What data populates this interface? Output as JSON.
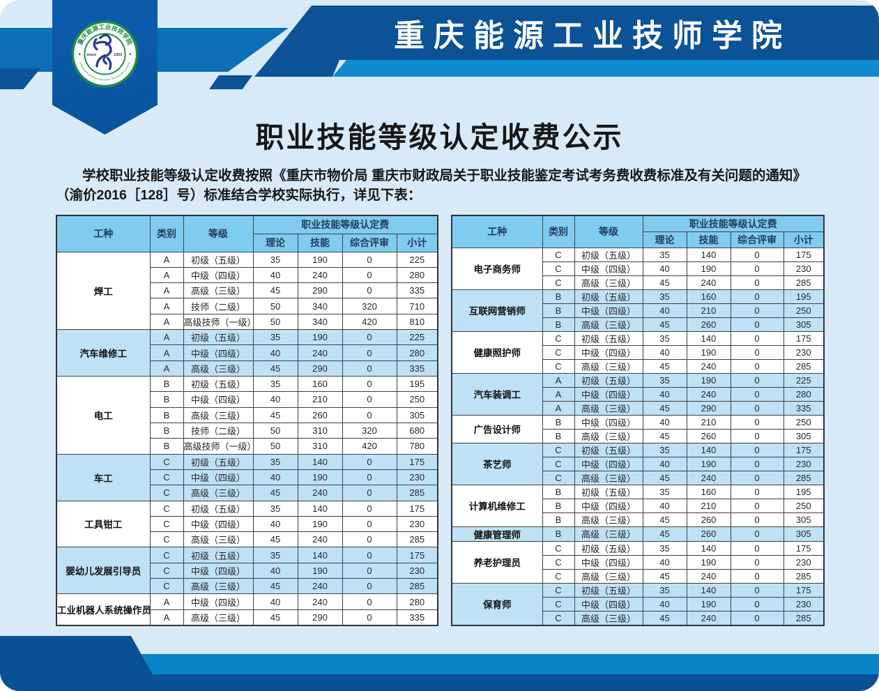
{
  "header": {
    "college_name": "重庆能源工业技师学院",
    "logo": {
      "ring_text_top": "重庆能源工业技师学院",
      "ring_text_bottom": "CHONGQING ENERGY INDUSTRY TECHNICIAN COLLEGE",
      "since_label": "since",
      "year_label": "1953"
    }
  },
  "title": "职业技能等级认定收费公示",
  "intro": {
    "line1": "学校职业技能等级认定收费按照《重庆市物价局 重庆市财政局关于职业技能鉴定考试考务费收费标准及有关问题的通知》",
    "line2": "（渝价2016［128］号）标准结合学校实际执行，详见下表："
  },
  "table_headers": {
    "job": "工种",
    "category": "类别",
    "level": "等级",
    "fee_group": "职业技能等级认定费",
    "theory": "理论",
    "skill": "技能",
    "review": "综合评审",
    "subtotal": "小计"
  },
  "tables": {
    "left": {
      "groups": [
        {
          "job": "焊工",
          "shade": false,
          "rows": [
            [
              "A",
              "初级（五级）",
              "35",
              "190",
              "0",
              "225"
            ],
            [
              "A",
              "中级（四级）",
              "40",
              "240",
              "0",
              "280"
            ],
            [
              "A",
              "高级（三级）",
              "45",
              "290",
              "0",
              "335"
            ],
            [
              "A",
              "技师（二级）",
              "50",
              "340",
              "320",
              "710"
            ],
            [
              "A",
              "高级技师（一级）",
              "50",
              "340",
              "420",
              "810"
            ]
          ]
        },
        {
          "job": "汽车维修工",
          "shade": true,
          "rows": [
            [
              "A",
              "初级（五级）",
              "35",
              "190",
              "0",
              "225"
            ],
            [
              "A",
              "中级（四级）",
              "40",
              "240",
              "0",
              "280"
            ],
            [
              "A",
              "高级（三级）",
              "45",
              "290",
              "0",
              "335"
            ]
          ]
        },
        {
          "job": "电工",
          "shade": false,
          "rows": [
            [
              "B",
              "初级（五级）",
              "35",
              "160",
              "0",
              "195"
            ],
            [
              "B",
              "中级（四级）",
              "40",
              "210",
              "0",
              "250"
            ],
            [
              "B",
              "高级（三级）",
              "45",
              "260",
              "0",
              "305"
            ],
            [
              "B",
              "技师（二级）",
              "50",
              "310",
              "320",
              "680"
            ],
            [
              "B",
              "高级技师（一级）",
              "50",
              "310",
              "420",
              "780"
            ]
          ]
        },
        {
          "job": "车工",
          "shade": true,
          "rows": [
            [
              "C",
              "初级（五级）",
              "35",
              "140",
              "0",
              "175"
            ],
            [
              "C",
              "中级（四级）",
              "40",
              "190",
              "0",
              "230"
            ],
            [
              "C",
              "高级（三级）",
              "45",
              "240",
              "0",
              "285"
            ]
          ]
        },
        {
          "job": "工具钳工",
          "shade": false,
          "rows": [
            [
              "C",
              "初级（五级）",
              "35",
              "140",
              "0",
              "175"
            ],
            [
              "C",
              "中级（四级）",
              "40",
              "190",
              "0",
              "230"
            ],
            [
              "C",
              "高级（三级）",
              "45",
              "240",
              "0",
              "285"
            ]
          ]
        },
        {
          "job": "婴幼儿发展引导员",
          "shade": true,
          "rows": [
            [
              "C",
              "初级（五级）",
              "35",
              "140",
              "0",
              "175"
            ],
            [
              "C",
              "中级（四级）",
              "40",
              "190",
              "0",
              "230"
            ],
            [
              "C",
              "高级（三级）",
              "45",
              "240",
              "0",
              "285"
            ]
          ]
        },
        {
          "job": "工业机器人系统操作员",
          "shade": false,
          "rows": [
            [
              "A",
              "中级（四级）",
              "40",
              "240",
              "0",
              "280"
            ],
            [
              "A",
              "高级（三级）",
              "45",
              "290",
              "0",
              "335"
            ]
          ]
        }
      ]
    },
    "right": {
      "groups": [
        {
          "job": "电子商务师",
          "shade": false,
          "rows": [
            [
              "C",
              "初级（五级）",
              "35",
              "140",
              "0",
              "175"
            ],
            [
              "C",
              "中级（四级）",
              "40",
              "190",
              "0",
              "230"
            ],
            [
              "C",
              "高级（三级）",
              "45",
              "240",
              "0",
              "285"
            ]
          ]
        },
        {
          "job": "互联网营销师",
          "shade": true,
          "rows": [
            [
              "B",
              "初级（五级）",
              "35",
              "160",
              "0",
              "195"
            ],
            [
              "B",
              "中级（四级）",
              "40",
              "210",
              "0",
              "250"
            ],
            [
              "B",
              "高级（三级）",
              "45",
              "260",
              "0",
              "305"
            ]
          ]
        },
        {
          "job": "健康照护师",
          "shade": false,
          "rows": [
            [
              "C",
              "初级（五级）",
              "35",
              "140",
              "0",
              "175"
            ],
            [
              "C",
              "中级（四级）",
              "40",
              "190",
              "0",
              "230"
            ],
            [
              "C",
              "高级（三级）",
              "45",
              "240",
              "0",
              "285"
            ]
          ]
        },
        {
          "job": "汽车装调工",
          "shade": true,
          "rows": [
            [
              "A",
              "初级（五级）",
              "35",
              "190",
              "0",
              "225"
            ],
            [
              "A",
              "中级（四级）",
              "40",
              "240",
              "0",
              "280"
            ],
            [
              "A",
              "高级（三级）",
              "45",
              "290",
              "0",
              "335"
            ]
          ]
        },
        {
          "job": "广告设计师",
          "shade": false,
          "rows": [
            [
              "B",
              "中级（四级）",
              "40",
              "210",
              "0",
              "250"
            ],
            [
              "B",
              "高级（三级）",
              "45",
              "260",
              "0",
              "305"
            ]
          ]
        },
        {
          "job": "茶艺师",
          "shade": true,
          "rows": [
            [
              "C",
              "初级（五级）",
              "35",
              "140",
              "0",
              "175"
            ],
            [
              "C",
              "中级（四级）",
              "40",
              "190",
              "0",
              "230"
            ],
            [
              "C",
              "高级（三级）",
              "45",
              "240",
              "0",
              "285"
            ]
          ]
        },
        {
          "job": "计算机维修工",
          "shade": false,
          "rows": [
            [
              "B",
              "初级（五级）",
              "35",
              "160",
              "0",
              "195"
            ],
            [
              "B",
              "中级（四级）",
              "40",
              "210",
              "0",
              "250"
            ],
            [
              "B",
              "高级（三级）",
              "45",
              "260",
              "0",
              "305"
            ]
          ]
        },
        {
          "job": "健康管理师",
          "shade": true,
          "rows": [
            [
              "B",
              "高级（三级）",
              "45",
              "260",
              "0",
              "305"
            ]
          ]
        },
        {
          "job": "养老护理员",
          "shade": false,
          "rows": [
            [
              "C",
              "初级（五级）",
              "35",
              "140",
              "0",
              "175"
            ],
            [
              "C",
              "中级（四级）",
              "40",
              "190",
              "0",
              "230"
            ],
            [
              "C",
              "高级（三级）",
              "45",
              "240",
              "0",
              "285"
            ]
          ]
        },
        {
          "job": "保育师",
          "shade": true,
          "rows": [
            [
              "C",
              "初级（五级）",
              "35",
              "140",
              "0",
              "175"
            ],
            [
              "C",
              "中级（四级）",
              "40",
              "190",
              "0",
              "230"
            ],
            [
              "C",
              "高级（三级）",
              "45",
              "240",
              "0",
              "285"
            ]
          ]
        }
      ]
    }
  },
  "colors": {
    "poster_bg": "#d8eaf8",
    "navy_band": "#0b5297",
    "cyan_strip": "#0f8cd0",
    "left_band": "#0d6fb8",
    "pennant": "#0b58a7",
    "table_header_bg": "#7fccf0",
    "row_shade": "#bfe1f6",
    "bottom_cyan": "#0a84c8",
    "bottom_navy": "#0a5094",
    "logo_green": "#1f8c47",
    "logo_glyph_blue": "#2b3a96"
  }
}
